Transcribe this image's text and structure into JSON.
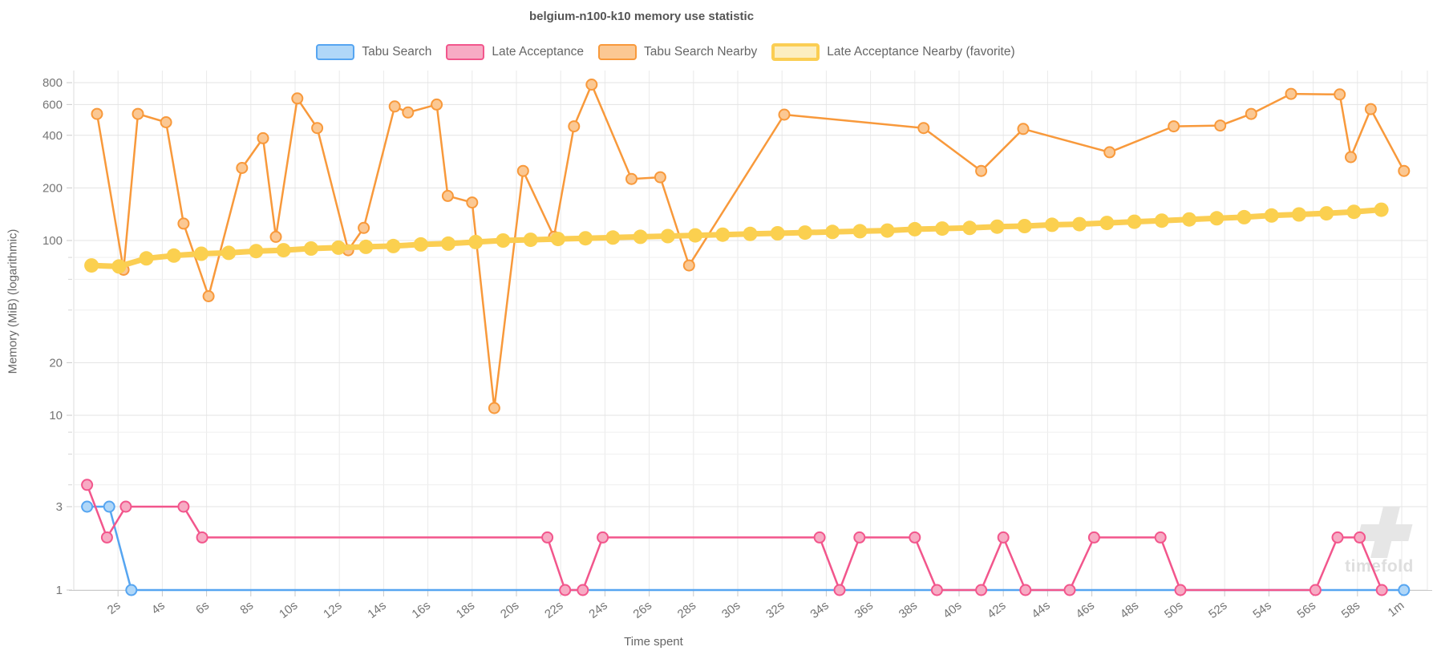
{
  "watermark": {
    "text": "timefold"
  },
  "chart_data": {
    "type": "line",
    "title": "belgium-n100-k10 memory use statistic",
    "x_axis": {
      "label": "Time spent",
      "unit": "seconds",
      "min": 0,
      "max": 61.5,
      "ticks": [
        {
          "t": 2,
          "label": "2s"
        },
        {
          "t": 4,
          "label": "4s"
        },
        {
          "t": 6,
          "label": "6s"
        },
        {
          "t": 8,
          "label": "8s"
        },
        {
          "t": 10,
          "label": "10s"
        },
        {
          "t": 12,
          "label": "12s"
        },
        {
          "t": 14,
          "label": "14s"
        },
        {
          "t": 16,
          "label": "16s"
        },
        {
          "t": 18,
          "label": "18s"
        },
        {
          "t": 20,
          "label": "20s"
        },
        {
          "t": 22,
          "label": "22s"
        },
        {
          "t": 24,
          "label": "24s"
        },
        {
          "t": 26,
          "label": "26s"
        },
        {
          "t": 28,
          "label": "28s"
        },
        {
          "t": 30,
          "label": "30s"
        },
        {
          "t": 32,
          "label": "32s"
        },
        {
          "t": 34,
          "label": "34s"
        },
        {
          "t": 36,
          "label": "36s"
        },
        {
          "t": 38,
          "label": "38s"
        },
        {
          "t": 40,
          "label": "40s"
        },
        {
          "t": 42,
          "label": "42s"
        },
        {
          "t": 44,
          "label": "44s"
        },
        {
          "t": 46,
          "label": "46s"
        },
        {
          "t": 48,
          "label": "48s"
        },
        {
          "t": 50,
          "label": "50s"
        },
        {
          "t": 52,
          "label": "52s"
        },
        {
          "t": 54,
          "label": "54s"
        },
        {
          "t": 56,
          "label": "56s"
        },
        {
          "t": 58,
          "label": "58s"
        },
        {
          "t": 60,
          "label": "1m"
        }
      ]
    },
    "y_axis": {
      "label": "Memory (MiB) (logarithmic)",
      "scale": "logarithmic",
      "min": 1,
      "max": 940,
      "ticks": [
        800,
        600,
        400,
        200,
        100,
        20,
        10,
        3,
        1
      ],
      "minor_gridlines": [
        80,
        60,
        40,
        8,
        6,
        4
      ]
    },
    "legend_position": "top-center",
    "grid": true,
    "series": [
      {
        "name": "Tabu Search",
        "color": "#56A5F1",
        "marker_fill": "#B0D7F8",
        "swatch_fill": "#B0D7F8",
        "favorite": false,
        "points": [
          [
            0.6,
            3
          ],
          [
            1.6,
            3
          ],
          [
            2.6,
            1
          ],
          [
            60.1,
            1
          ]
        ]
      },
      {
        "name": "Late Acceptance",
        "color": "#F2568C",
        "marker_fill": "#F7ABC4",
        "swatch_fill": "#F7ABC4",
        "favorite": false,
        "points": [
          [
            0.6,
            4
          ],
          [
            1.5,
            2
          ],
          [
            2.35,
            3
          ],
          [
            4.96,
            3
          ],
          [
            5.8,
            2
          ],
          [
            21.4,
            2
          ],
          [
            22.2,
            1
          ],
          [
            23,
            1
          ],
          [
            23.9,
            2
          ],
          [
            33.7,
            2
          ],
          [
            34.6,
            1
          ],
          [
            35.5,
            2
          ],
          [
            38,
            2
          ],
          [
            39,
            1
          ],
          [
            41,
            1
          ],
          [
            42,
            2
          ],
          [
            43,
            1
          ],
          [
            45,
            1
          ],
          [
            46.1,
            2
          ],
          [
            49.1,
            2
          ],
          [
            50,
            1
          ],
          [
            56.1,
            1
          ],
          [
            57.1,
            2
          ],
          [
            58.1,
            2
          ],
          [
            59.1,
            1
          ]
        ]
      },
      {
        "name": "Tabu Search Nearby",
        "color": "#F8993B",
        "marker_fill": "#FBC893",
        "swatch_fill": "#FBC893",
        "favorite": false,
        "points": [
          [
            1.05,
            530
          ],
          [
            2.25,
            68
          ],
          [
            2.9,
            530
          ],
          [
            4.17,
            475
          ],
          [
            4.96,
            125
          ],
          [
            6.09,
            48
          ],
          [
            7.6,
            260
          ],
          [
            8.55,
            385
          ],
          [
            9.13,
            105
          ],
          [
            10.1,
            650
          ],
          [
            11,
            440
          ],
          [
            12.4,
            88
          ],
          [
            13.1,
            118
          ],
          [
            14.5,
            585
          ],
          [
            15.1,
            540
          ],
          [
            16.4,
            600
          ],
          [
            16.9,
            180
          ],
          [
            18,
            165
          ],
          [
            19,
            11
          ],
          [
            20.3,
            250
          ],
          [
            21.7,
            105
          ],
          [
            22.6,
            450
          ],
          [
            23.4,
            780
          ],
          [
            25.2,
            225
          ],
          [
            26.5,
            230
          ],
          [
            27.8,
            72
          ],
          [
            32.1,
            525
          ],
          [
            38.4,
            440
          ],
          [
            41,
            250
          ],
          [
            42.9,
            435
          ],
          [
            46.8,
            320
          ],
          [
            49.7,
            450
          ],
          [
            51.8,
            455
          ],
          [
            53.2,
            530
          ],
          [
            55,
            690
          ],
          [
            57.2,
            685
          ],
          [
            57.7,
            300
          ],
          [
            58.6,
            565
          ],
          [
            60.1,
            250
          ]
        ]
      },
      {
        "name": "Late Acceptance Nearby (favorite)",
        "color": "#FBCE53",
        "marker_fill": "#FBD04F",
        "swatch_fill": "#FCEEC0",
        "favorite": true,
        "points": [
          [
            0.8,
            72
          ],
          [
            2.04,
            71
          ],
          [
            3.28,
            79
          ],
          [
            4.52,
            82
          ],
          [
            5.76,
            84
          ],
          [
            7,
            85
          ],
          [
            8.24,
            87
          ],
          [
            9.48,
            88
          ],
          [
            10.72,
            90
          ],
          [
            11.96,
            91
          ],
          [
            13.2,
            92
          ],
          [
            14.44,
            93
          ],
          [
            15.68,
            95
          ],
          [
            16.92,
            96
          ],
          [
            18.16,
            98
          ],
          [
            19.4,
            100
          ],
          [
            20.64,
            101
          ],
          [
            21.88,
            102
          ],
          [
            23.12,
            103
          ],
          [
            24.36,
            104
          ],
          [
            25.6,
            105
          ],
          [
            26.84,
            106
          ],
          [
            28.08,
            107
          ],
          [
            29.32,
            108
          ],
          [
            30.56,
            109
          ],
          [
            31.8,
            110
          ],
          [
            33.04,
            111
          ],
          [
            34.28,
            112
          ],
          [
            35.52,
            113
          ],
          [
            36.76,
            114
          ],
          [
            38,
            116
          ],
          [
            39.24,
            117
          ],
          [
            40.48,
            118
          ],
          [
            41.72,
            120
          ],
          [
            42.96,
            121
          ],
          [
            44.2,
            123
          ],
          [
            45.44,
            124
          ],
          [
            46.68,
            126
          ],
          [
            47.92,
            128
          ],
          [
            49.16,
            130
          ],
          [
            50.4,
            132
          ],
          [
            51.64,
            134
          ],
          [
            52.88,
            136
          ],
          [
            54.12,
            139
          ],
          [
            55.36,
            141
          ],
          [
            56.6,
            143
          ],
          [
            57.84,
            146
          ],
          [
            59.08,
            150
          ]
        ]
      }
    ]
  }
}
